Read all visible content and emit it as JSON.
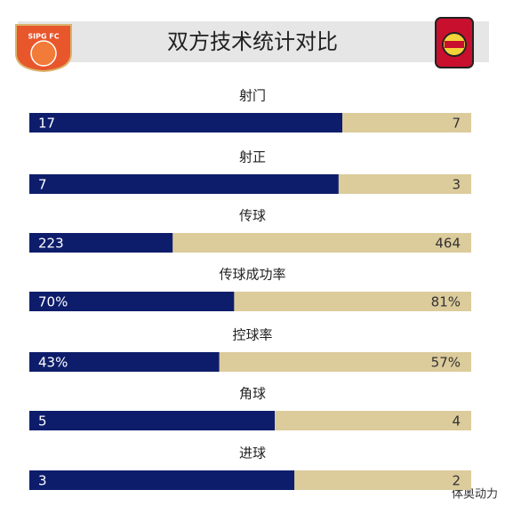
{
  "chart_data": {
    "type": "split_bar",
    "title": "双方技术统计对比",
    "logo_text": "SIPG FC",
    "watermark": "体奥动力",
    "categories": [
      "射门",
      "射正",
      "传球",
      "传球成功率",
      "控球率",
      "角球",
      "进球"
    ],
    "series": [
      {
        "color": "#0e1d6b",
        "values": [
          17,
          7,
          223,
          70,
          43,
          5,
          3
        ],
        "value_labels": [
          "17",
          "7",
          "223",
          "70%",
          "43%",
          "5",
          "3"
        ]
      },
      {
        "color": "#dccb9b",
        "values": [
          7,
          3,
          464,
          81,
          57,
          4,
          2
        ],
        "value_labels": [
          "7",
          "3",
          "464",
          "81%",
          "57%",
          "4",
          "2"
        ]
      }
    ]
  }
}
